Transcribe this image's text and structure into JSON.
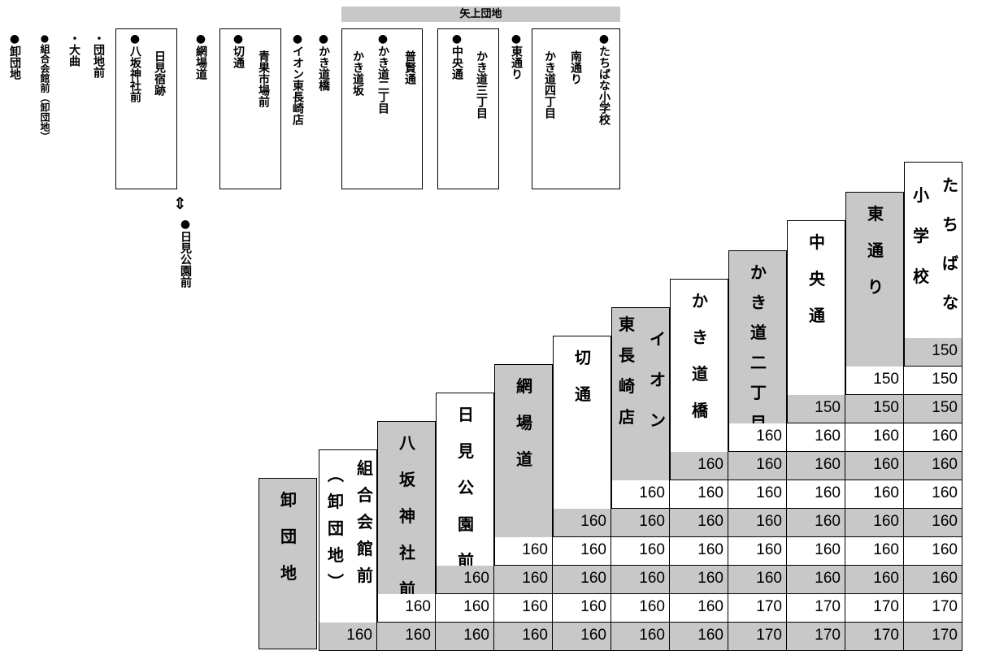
{
  "route": {
    "banner": "矢上団地",
    "stops_top": [
      {
        "label": "●卸団地",
        "group": null
      },
      {
        "label": "●組合会館前（卸団地）",
        "group": null
      },
      {
        "label": "・大曲",
        "group": null
      },
      {
        "label": "・団地前",
        "group": null
      },
      {
        "label": "●八坂神社前",
        "group": "a"
      },
      {
        "label": "日見宿跡",
        "group": "a"
      },
      {
        "label": "●網場道",
        "group": null
      },
      {
        "label": "●切通",
        "group": "b"
      },
      {
        "label": "青果市場前",
        "group": "b"
      },
      {
        "label": "●イオン東長崎店",
        "group": null
      },
      {
        "label": "●かき道橋",
        "group": null
      },
      {
        "label": "かき道坂",
        "group": "c"
      },
      {
        "label": "●かき道二丁目",
        "group": "c"
      },
      {
        "label": "普賢通",
        "group": "c"
      },
      {
        "label": "●中央通",
        "group": "d"
      },
      {
        "label": "かき道三丁目",
        "group": "d"
      },
      {
        "label": "●東通り",
        "group": null
      },
      {
        "label": "かき道四丁目",
        "group": "e"
      },
      {
        "label": "南通り",
        "group": "e"
      },
      {
        "label": "●たちばな小学校",
        "group": "e"
      }
    ],
    "branch_stop": "●日見公園前",
    "arrow_symbol": "⇕"
  },
  "fare_table": {
    "headers": [
      "卸団地",
      "組合会館前（卸団地）",
      "八坂神社前",
      "日見公園前",
      "網場道",
      "切通",
      "イオン東長崎店",
      "かき道橋",
      "かき道二丁目",
      "中央通",
      "東通り",
      "たちばな小学校"
    ],
    "rows": [
      [
        "150"
      ],
      [
        "150",
        "150"
      ],
      [
        "150",
        "150",
        "150"
      ],
      [
        "160",
        "160",
        "160",
        "160"
      ],
      [
        "160",
        "160",
        "160",
        "160",
        "160"
      ],
      [
        "160",
        "160",
        "160",
        "160",
        "160",
        "160"
      ],
      [
        "160",
        "160",
        "160",
        "160",
        "160",
        "160",
        "160"
      ],
      [
        "160",
        "160",
        "160",
        "160",
        "160",
        "160",
        "160",
        "160"
      ],
      [
        "160",
        "160",
        "160",
        "160",
        "160",
        "160",
        "160",
        "160",
        "160"
      ],
      [
        "160",
        "160",
        "160",
        "160",
        "160",
        "160",
        "170",
        "170",
        "170",
        "170"
      ],
      [
        "160",
        "160",
        "160",
        "160",
        "160",
        "160",
        "160",
        "170",
        "170",
        "170",
        "170"
      ]
    ]
  },
  "colors": {
    "shade": "#c8c8c8",
    "line": "#000000"
  }
}
